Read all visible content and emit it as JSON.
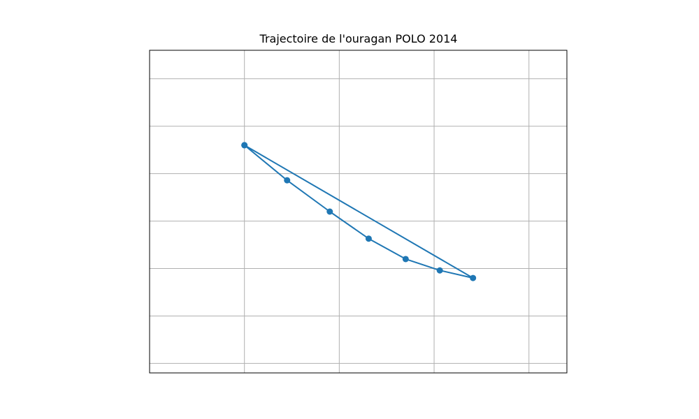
{
  "chart_data": {
    "type": "line",
    "title": "Trajectoire de l'ouragan POLO 2014",
    "xlabel": "",
    "ylabel": "",
    "xlim": [
      0,
      4.4
    ],
    "ylim": [
      0,
      6.8
    ],
    "xgrid": [
      1,
      2,
      3,
      4
    ],
    "ygrid": [
      0.2,
      1.2,
      2.2,
      3.2,
      4.2,
      5.2,
      6.2
    ],
    "grid": true,
    "axis_ticks_visible": false,
    "series": [
      {
        "x": [
          1.0,
          1.45,
          1.9,
          2.31,
          2.7,
          3.06,
          3.41,
          1.0
        ],
        "y": [
          4.8,
          4.06,
          3.4,
          2.83,
          2.4,
          2.16,
          2.0,
          4.8
        ],
        "marker": "circle",
        "color": "#1f77b4"
      }
    ]
  }
}
